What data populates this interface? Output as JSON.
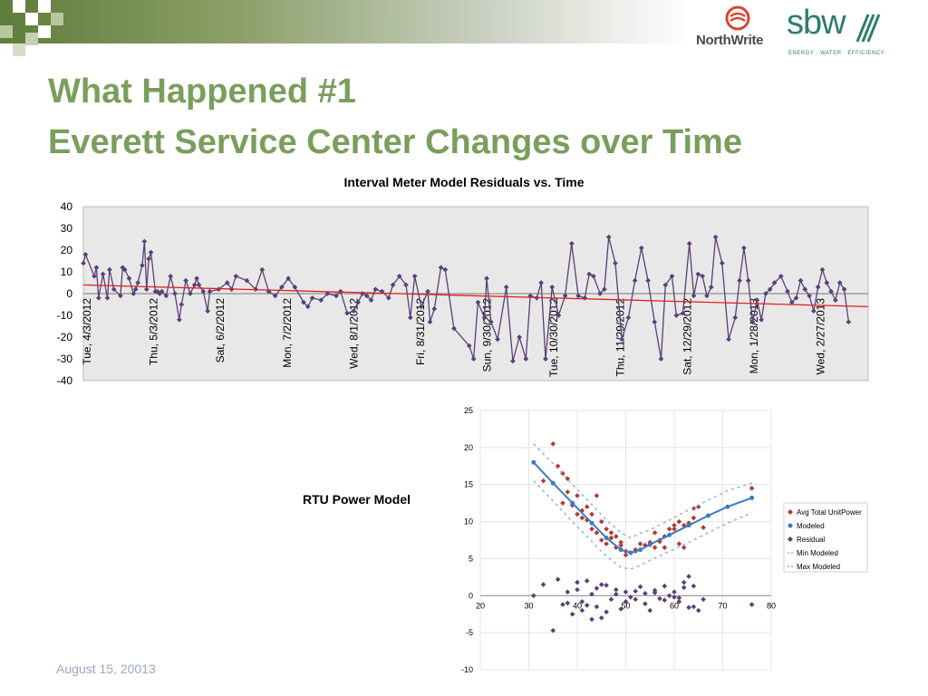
{
  "slide": {
    "title_line1": "What Happened #1",
    "title_line2": "Everett Service Center Changes over Time",
    "footer_date": "August 15, 20013",
    "logo_northwrite": "NorthWrite",
    "logo_sbw": "sbw",
    "logo_sbw_tagline": "ENERGY · WATER · EFFICIENCY",
    "accent_color": "#7a9e5c",
    "rtu_label": "RTU Power Model"
  },
  "chart_data": [
    {
      "type": "line",
      "title": "Interval Meter Model Residuals vs. Time",
      "xlabel": "",
      "ylabel": "",
      "ylim": [
        -40,
        40
      ],
      "yticks": [
        40,
        30,
        20,
        10,
        0,
        -10,
        -20,
        -30,
        -40
      ],
      "grid": false,
      "background": "#e8e8e8",
      "x_tick_labels": [
        "Tue, 4/3/2012",
        "Thu, 5/3/2012",
        "Sat, 6/2/2012",
        "Mon, 7/2/2012",
        "Wed, 8/1/2012",
        "Fri, 8/31/2012",
        "Sun, 9/30/2012",
        "Tue, 10/30/2012",
        "Thu, 11/29/2012",
        "Sat, 12/29/2012",
        "Mon, 1/28/2013",
        "Wed, 2/27/2013"
      ],
      "x_range_days": [
        0,
        360
      ],
      "series": [
        {
          "color": "#5a3f78",
          "x": [
            0,
            1,
            5,
            6,
            7,
            9,
            11,
            12,
            14,
            17,
            18,
            19,
            21,
            23,
            24,
            25,
            27,
            28,
            29,
            30,
            31,
            33,
            34,
            35,
            36,
            38,
            40,
            42,
            44,
            45,
            47,
            49,
            51,
            52,
            53,
            55,
            57,
            58,
            62,
            66,
            68,
            70,
            75,
            79,
            82,
            85,
            88,
            91,
            94,
            97,
            101,
            103,
            105,
            109,
            112,
            116,
            118,
            121,
            124,
            126,
            128,
            130,
            132,
            134,
            137,
            140,
            142,
            145,
            148,
            150,
            152,
            155,
            158,
            159,
            161,
            164,
            166,
            170,
            177,
            179,
            181,
            184,
            185,
            187,
            190,
            194,
            197,
            200,
            203,
            205,
            208,
            210,
            212,
            215,
            218,
            221,
            224,
            227,
            230,
            232,
            234,
            237,
            239,
            241,
            244,
            247,
            250,
            253,
            256,
            259,
            262,
            265,
            267,
            270,
            272,
            275,
            278,
            280,
            282,
            284,
            286,
            288,
            290,
            293,
            296,
            299,
            301,
            303,
            305,
            307,
            309,
            311,
            313,
            315,
            317,
            320,
            323,
            325,
            327,
            329,
            331,
            333,
            335,
            337,
            339,
            341,
            343,
            345,
            347,
            349,
            351
          ],
          "y": [
            14,
            18,
            8,
            12,
            -2,
            9,
            -2,
            11,
            2,
            -1,
            12,
            11,
            7,
            0,
            2,
            5,
            13,
            24,
            2,
            16,
            19,
            1,
            1,
            0,
            1,
            -1,
            8,
            0,
            -12,
            -5,
            6,
            0,
            4,
            7,
            4,
            1,
            -8,
            1,
            2,
            5,
            2,
            8,
            6,
            2,
            11,
            1,
            -1,
            3,
            7,
            3,
            -4,
            -6,
            -2,
            -3,
            0,
            -1,
            1,
            -9,
            -8,
            -4,
            0,
            -1,
            -3,
            2,
            1,
            -2,
            4,
            8,
            4,
            -11,
            8,
            -6,
            1,
            -13,
            -7,
            12,
            11,
            -16,
            -24,
            -30,
            -4,
            -11,
            7,
            -13,
            -21,
            3,
            -31,
            -20,
            -30,
            -1,
            -2,
            5,
            -30,
            3,
            -10,
            -1,
            23,
            -1,
            -2,
            9,
            8,
            0,
            2,
            26,
            14,
            -21,
            -11,
            6,
            21,
            6,
            -13,
            -30,
            4,
            8,
            -10,
            -9,
            23,
            -1,
            9,
            8,
            -1,
            3,
            26,
            14,
            -21,
            -11,
            6,
            21,
            6,
            -13,
            -3,
            -12,
            0,
            2,
            5,
            8,
            1,
            -4,
            -2,
            6,
            2,
            -1,
            -8,
            3,
            11,
            5,
            1,
            -3,
            5,
            2,
            -13
          ],
          "trend_start": 4,
          "trend_end": -6,
          "trend_color": "#e02020"
        }
      ]
    },
    {
      "type": "scatter",
      "title": "",
      "xlabel": "",
      "ylabel": "",
      "xlim": [
        20,
        80
      ],
      "ylim": [
        -10,
        25
      ],
      "xticks": [
        20,
        30,
        40,
        50,
        60,
        70,
        80
      ],
      "yticks": [
        25,
        20,
        15,
        10,
        5,
        0,
        -5,
        -10
      ],
      "grid": true,
      "legend": "right",
      "series": [
        {
          "name": "Avg Total UnitPower",
          "color": "#b23a2e",
          "marker": "diamond",
          "x": [
            33,
            35,
            36,
            37,
            38,
            39,
            40,
            41,
            42,
            43,
            44,
            45,
            46,
            47,
            48,
            49,
            50,
            51,
            52,
            53,
            54,
            55,
            56,
            57,
            58,
            59,
            60,
            61,
            62,
            63,
            64,
            65,
            66,
            76,
            38,
            40,
            42,
            44,
            46,
            48,
            50,
            52,
            54,
            56,
            58,
            60,
            62,
            64,
            37,
            41,
            43,
            45,
            47,
            49,
            57,
            61,
            63
          ],
          "y": [
            15.5,
            20.5,
            17.5,
            12.5,
            15.8,
            12.2,
            11,
            10.5,
            10.2,
            9,
            8.5,
            7.5,
            7,
            7.8,
            6.5,
            7.2,
            6,
            5.8,
            6.2,
            7,
            6.8,
            7.2,
            6.5,
            7.5,
            8,
            9,
            9.5,
            10,
            9.5,
            9.8,
            10.5,
            12,
            9.2,
            14.5,
            14,
            13.5,
            12,
            13.5,
            9,
            8,
            5.5,
            6,
            6.8,
            8.5,
            6.5,
            9,
            6.5,
            11.8,
            16.5,
            11.5,
            11,
            10,
            8.5,
            6.8,
            7.3,
            7,
            9.8
          ]
        },
        {
          "name": "Modeled",
          "color": "#3a7cc4",
          "marker": "circle-line",
          "x": [
            31,
            35,
            39,
            43,
            46,
            49,
            51,
            53,
            55,
            59,
            63,
            67,
            71,
            76
          ],
          "y": [
            18,
            15.2,
            12.5,
            9.8,
            7.8,
            6.2,
            5.8,
            6.2,
            6.9,
            8.2,
            9.5,
            10.8,
            12,
            13.2
          ]
        },
        {
          "name": "Residual",
          "color": "#5a3f78",
          "marker": "diamond",
          "x": [
            31,
            33,
            35,
            36,
            37,
            38,
            39,
            40,
            41,
            42,
            43,
            44,
            45,
            46,
            47,
            48,
            49,
            50,
            51,
            52,
            53,
            54,
            55,
            56,
            57,
            58,
            59,
            60,
            61,
            62,
            63,
            64,
            65,
            66,
            76,
            38,
            40,
            42,
            44,
            46,
            48,
            50,
            52,
            54,
            56,
            58,
            60,
            62,
            64,
            41,
            43,
            45,
            61,
            63
          ],
          "y": [
            0,
            1.5,
            -4.7,
            2.2,
            -1.2,
            0.5,
            -2.5,
            1.8,
            -0.8,
            2,
            0.2,
            -1.5,
            -3,
            1.4,
            -0.5,
            0.8,
            -1.8,
            0.5,
            -0.2,
            -0.5,
            1.2,
            0.3,
            -2,
            0.7,
            -0.4,
            1.3,
            0,
            0.5,
            -0.8,
            1.8,
            2.6,
            -1.5,
            -2,
            -0.5,
            -1.2,
            -1,
            0.8,
            -1.3,
            1,
            -2.2,
            0.2,
            -0.8,
            0.6,
            -1.1,
            0.4,
            -0.6,
            -0.2,
            1.1,
            1.3,
            -2,
            -3.2,
            1.5,
            -0.3,
            -1.6
          ]
        },
        {
          "name": "Min Modeled",
          "color": "#8fb0e0",
          "marker": "dash",
          "x": [
            31,
            35,
            39,
            43,
            46,
            49,
            51,
            53,
            55,
            59,
            63,
            67,
            71,
            76
          ],
          "y": [
            15.5,
            12.8,
            10,
            7.3,
            5.3,
            3.8,
            3.6,
            4.1,
            4.8,
            6,
            7.2,
            8.5,
            9.8,
            11.2
          ]
        },
        {
          "name": "Max Modeled",
          "color": "#8fb0e0",
          "marker": "dash",
          "x": [
            31,
            35,
            39,
            43,
            46,
            49,
            51,
            53,
            55,
            59,
            63,
            67,
            71,
            76
          ],
          "y": [
            20.5,
            17.8,
            15,
            12.3,
            10.2,
            8.5,
            7.8,
            8.4,
            8.9,
            10.2,
            11.6,
            12.9,
            14.2,
            15.2
          ]
        }
      ]
    }
  ]
}
